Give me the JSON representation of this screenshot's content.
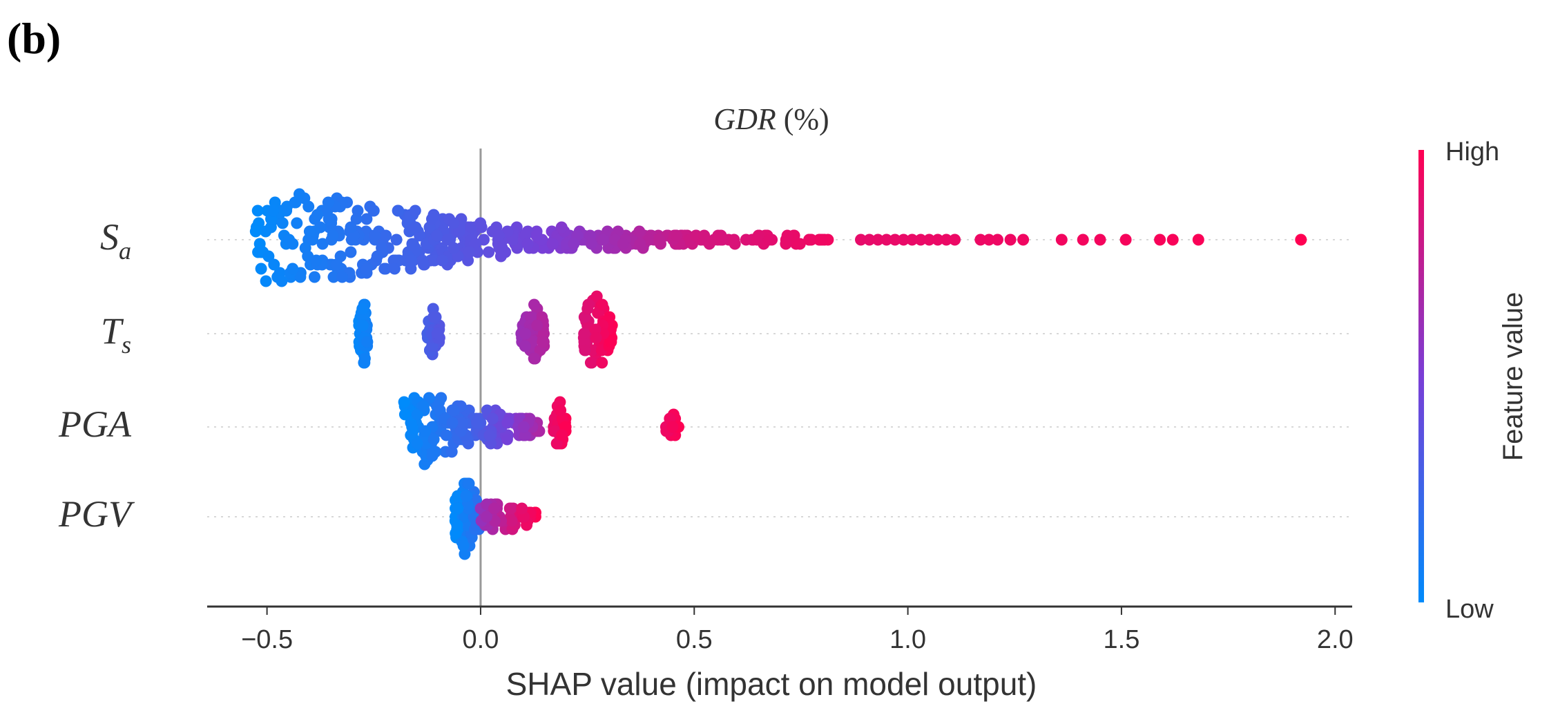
{
  "panel_label": "(b)",
  "chart_data": {
    "type": "scatter",
    "subtype": "shap-beeswarm",
    "title_main": "GDR",
    "title_unit": " (%)",
    "xlabel": "SHAP value (impact on model output)",
    "xlim": [
      -0.64,
      2.04
    ],
    "xticks": [
      {
        "value": -0.5,
        "label": "−0.5"
      },
      {
        "value": 0.0,
        "label": "0.0"
      },
      {
        "value": 0.5,
        "label": "0.5"
      },
      {
        "value": 1.0,
        "label": "1.0"
      },
      {
        "value": 1.5,
        "label": "1.5"
      },
      {
        "value": 2.0,
        "label": "2.0"
      }
    ],
    "zero_line": 0,
    "colorbar": {
      "label": "Feature value",
      "high_label": "High",
      "low_label": "Low",
      "low_color": "#008bfb",
      "high_color": "#ff0052"
    },
    "features": [
      {
        "base": "S",
        "sub": "a",
        "clusters": [
          {
            "min": -0.53,
            "max": 0.1,
            "peak": -0.42,
            "height": 11,
            "density": 260,
            "color_lo": 0.0,
            "color_hi": 0.45
          },
          {
            "min": 0.1,
            "max": 0.5,
            "peak": 0.16,
            "height": 3,
            "density": 120,
            "color_lo": 0.45,
            "color_hi": 0.82
          },
          {
            "min": 0.5,
            "max": 0.82,
            "peak": 0.62,
            "height": 1,
            "density": 45,
            "color_lo": 0.82,
            "color_hi": 0.95
          }
        ],
        "points": [
          0.89,
          0.91,
          0.93,
          0.95,
          0.97,
          0.99,
          1.01,
          1.03,
          1.05,
          1.07,
          1.09,
          1.11,
          1.17,
          1.19,
          1.21,
          1.24,
          1.27,
          1.36,
          1.41,
          1.45,
          1.51,
          1.59,
          1.62,
          1.68,
          1.92
        ]
      },
      {
        "base": "T",
        "sub": "s",
        "clusters": [
          {
            "min": -0.285,
            "max": -0.265,
            "peak": -0.275,
            "height": 10,
            "density": 40,
            "color_lo": 0.02,
            "color_hi": 0.08
          },
          {
            "min": -0.125,
            "max": -0.095,
            "peak": -0.11,
            "height": 7,
            "density": 40,
            "color_lo": 0.28,
            "color_hi": 0.35
          },
          {
            "min": 0.095,
            "max": 0.15,
            "peak": 0.125,
            "height": 8,
            "density": 60,
            "color_lo": 0.62,
            "color_hi": 0.72
          },
          {
            "min": 0.24,
            "max": 0.31,
            "peak": 0.27,
            "height": 10,
            "density": 70,
            "color_lo": 0.85,
            "color_hi": 1.0
          }
        ],
        "points": []
      },
      {
        "base": "PGA",
        "sub": "",
        "clusters": [
          {
            "min": -0.18,
            "max": 0.0,
            "peak": -0.13,
            "height": 9,
            "density": 120,
            "color_lo": 0.0,
            "color_hi": 0.3
          },
          {
            "min": 0.0,
            "max": 0.14,
            "peak": 0.02,
            "height": 4,
            "density": 70,
            "color_lo": 0.3,
            "color_hi": 0.7
          },
          {
            "min": 0.17,
            "max": 0.2,
            "peak": 0.185,
            "height": 6,
            "density": 35,
            "color_lo": 0.9,
            "color_hi": 1.0
          },
          {
            "min": 0.43,
            "max": 0.465,
            "peak": 0.45,
            "height": 3,
            "density": 12,
            "color_lo": 0.92,
            "color_hi": 1.0
          }
        ],
        "points": []
      },
      {
        "base": "PGV",
        "sub": "",
        "clusters": [
          {
            "min": -0.06,
            "max": 0.0,
            "peak": -0.035,
            "height": 10,
            "density": 80,
            "color_lo": 0.0,
            "color_hi": 0.2
          },
          {
            "min": 0.0,
            "max": 0.13,
            "peak": 0.03,
            "height": 4,
            "density": 60,
            "color_lo": 0.6,
            "color_hi": 1.0
          }
        ],
        "points": []
      }
    ]
  }
}
